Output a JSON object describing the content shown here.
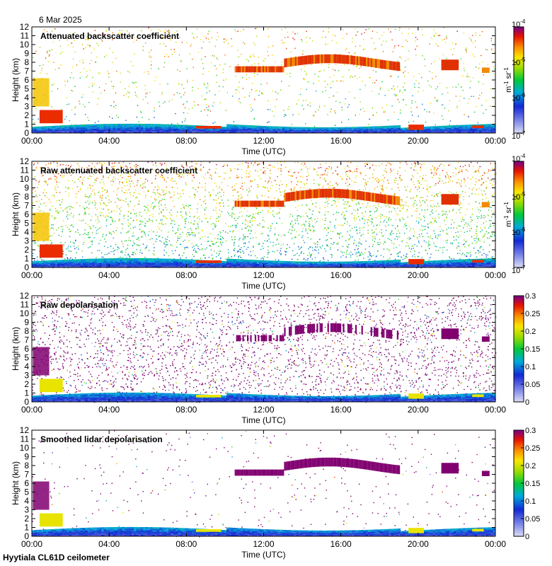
{
  "date": "6 Mar 2025",
  "footer": "Hyytiala CL61D ceilometer",
  "chart_data": [
    {
      "type": "heatmap",
      "title": "Attenuated backscatter coefficient",
      "xlabel": "Time (UTC)",
      "ylabel": "Height (km)",
      "x_ticks": [
        "00:00",
        "04:00",
        "08:00",
        "12:00",
        "16:00",
        "20:00",
        "00:00"
      ],
      "y_ticks": [
        "0",
        "1",
        "2",
        "3",
        "4",
        "5",
        "6",
        "7",
        "8",
        "9",
        "10",
        "11",
        "12"
      ],
      "ylim": [
        0,
        12
      ],
      "colorbar": {
        "scale": "log",
        "range": [
          1e-07,
          0.0001
        ],
        "unit_base": "m",
        "unit_base_exp": "-1",
        "unit_second": "sr",
        "unit_second_exp": "-1",
        "tick_labels": [
          {
            "base": "10",
            "exp": "-4"
          },
          {
            "base": "10",
            "exp": "-5"
          },
          {
            "base": "10",
            "exp": "-6"
          },
          {
            "base": "10",
            "exp": "-7"
          }
        ]
      },
      "noise_level": 0.16
    },
    {
      "type": "heatmap",
      "title": "Raw attenuated backscatter coefficient",
      "xlabel": "Time (UTC)",
      "ylabel": "Height (km)",
      "x_ticks": [
        "00:00",
        "04:00",
        "08:00",
        "12:00",
        "16:00",
        "20:00",
        "00:00"
      ],
      "y_ticks": [
        "0",
        "1",
        "2",
        "3",
        "4",
        "5",
        "6",
        "7",
        "8",
        "9",
        "10",
        "11",
        "12"
      ],
      "ylim": [
        0,
        12
      ],
      "colorbar": {
        "scale": "log",
        "range": [
          1e-07,
          0.0001
        ],
        "unit_base": "m",
        "unit_base_exp": "-1",
        "unit_second": "sr",
        "unit_second_exp": "-1",
        "tick_labels": [
          {
            "base": "10",
            "exp": "-4"
          },
          {
            "base": "10",
            "exp": "-5"
          },
          {
            "base": "10",
            "exp": "-6"
          },
          {
            "base": "10",
            "exp": "-7"
          }
        ]
      },
      "noise_level": 0.85
    },
    {
      "type": "heatmap",
      "title": "Raw depolarisation",
      "xlabel": "Time (UTC)",
      "ylabel": "Height (km)",
      "x_ticks": [
        "00:00",
        "04:00",
        "08:00",
        "12:00",
        "16:00",
        "20:00",
        "00:00"
      ],
      "y_ticks": [
        "0",
        "1",
        "2",
        "3",
        "4",
        "5",
        "6",
        "7",
        "8",
        "9",
        "10",
        "11",
        "12"
      ],
      "ylim": [
        0,
        12
      ],
      "colorbar": {
        "scale": "linear",
        "range": [
          0,
          0.3
        ],
        "tick_labels": [
          "0.3",
          "0.25",
          "0.2",
          "0.15",
          "0.1",
          "0.05",
          "0"
        ]
      },
      "noise_level": 0.9
    },
    {
      "type": "heatmap",
      "title": "Smoothed lidar depolarisation",
      "xlabel": "Time (UTC)",
      "ylabel": "Height (km)",
      "x_ticks": [
        "00:00",
        "04:00",
        "08:00",
        "12:00",
        "16:00",
        "20:00",
        "00:00"
      ],
      "y_ticks": [
        "0",
        "1",
        "2",
        "3",
        "4",
        "5",
        "6",
        "7",
        "8",
        "9",
        "10",
        "11",
        "12"
      ],
      "ylim": [
        0,
        12
      ],
      "colorbar": {
        "scale": "linear",
        "range": [
          0,
          0.3
        ],
        "tick_labels": [
          "0.3",
          "0.25",
          "0.2",
          "0.15",
          "0.1",
          "0.05",
          "0"
        ]
      },
      "noise_level": 0.1
    }
  ],
  "colors": {
    "cloud_high": "#e03000",
    "cloud_high_edge": "#f08a00",
    "depol_high": "#800070",
    "boundary_layer": "#1030c0"
  }
}
